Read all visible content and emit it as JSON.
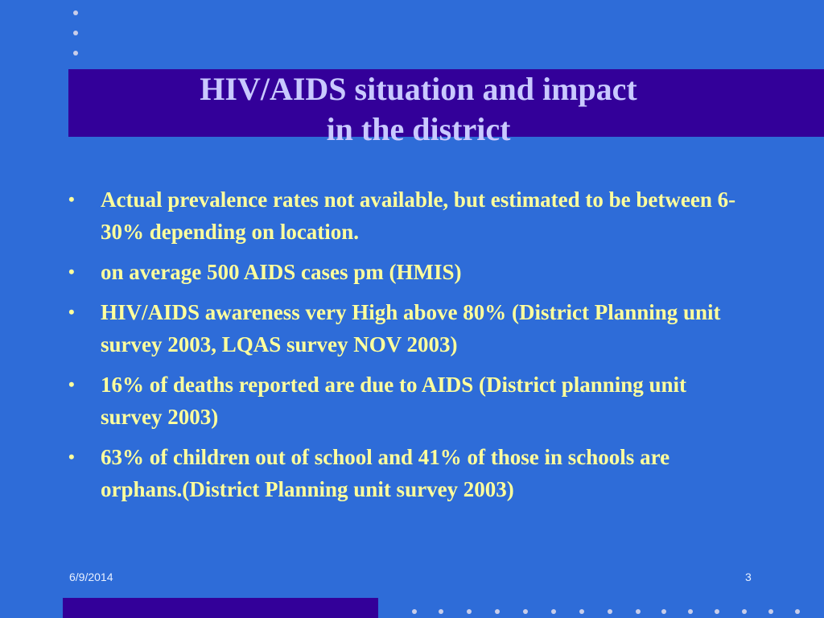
{
  "slide": {
    "title_lines": [
      "HIV/AIDS situation and impact",
      "in the district"
    ],
    "bullet_marker": "•",
    "bullets": [
      "Actual prevalence rates not available, but estimated to be between 6-30% depending on location.",
      "on average 500 AIDS cases pm (HMIS)",
      "HIV/AIDS awareness very High above 80% (District Planning unit survey 2003, LQAS survey NOV 2003)",
      "16% of deaths reported are due to AIDS (District planning unit survey 2003)",
      "63% of children out of school and  41% of those in schools are orphans.(District Planning unit survey 2003)"
    ],
    "footer": {
      "date": "6/9/2014",
      "page_number": "3"
    }
  },
  "colors": {
    "background": "#2e6cd8",
    "title_band": "#330099",
    "title_text": "#c9c9ff",
    "body_text": "#ffff9c",
    "footer_text": "#e8f0ff",
    "decor_dots": "#c8cdea"
  }
}
